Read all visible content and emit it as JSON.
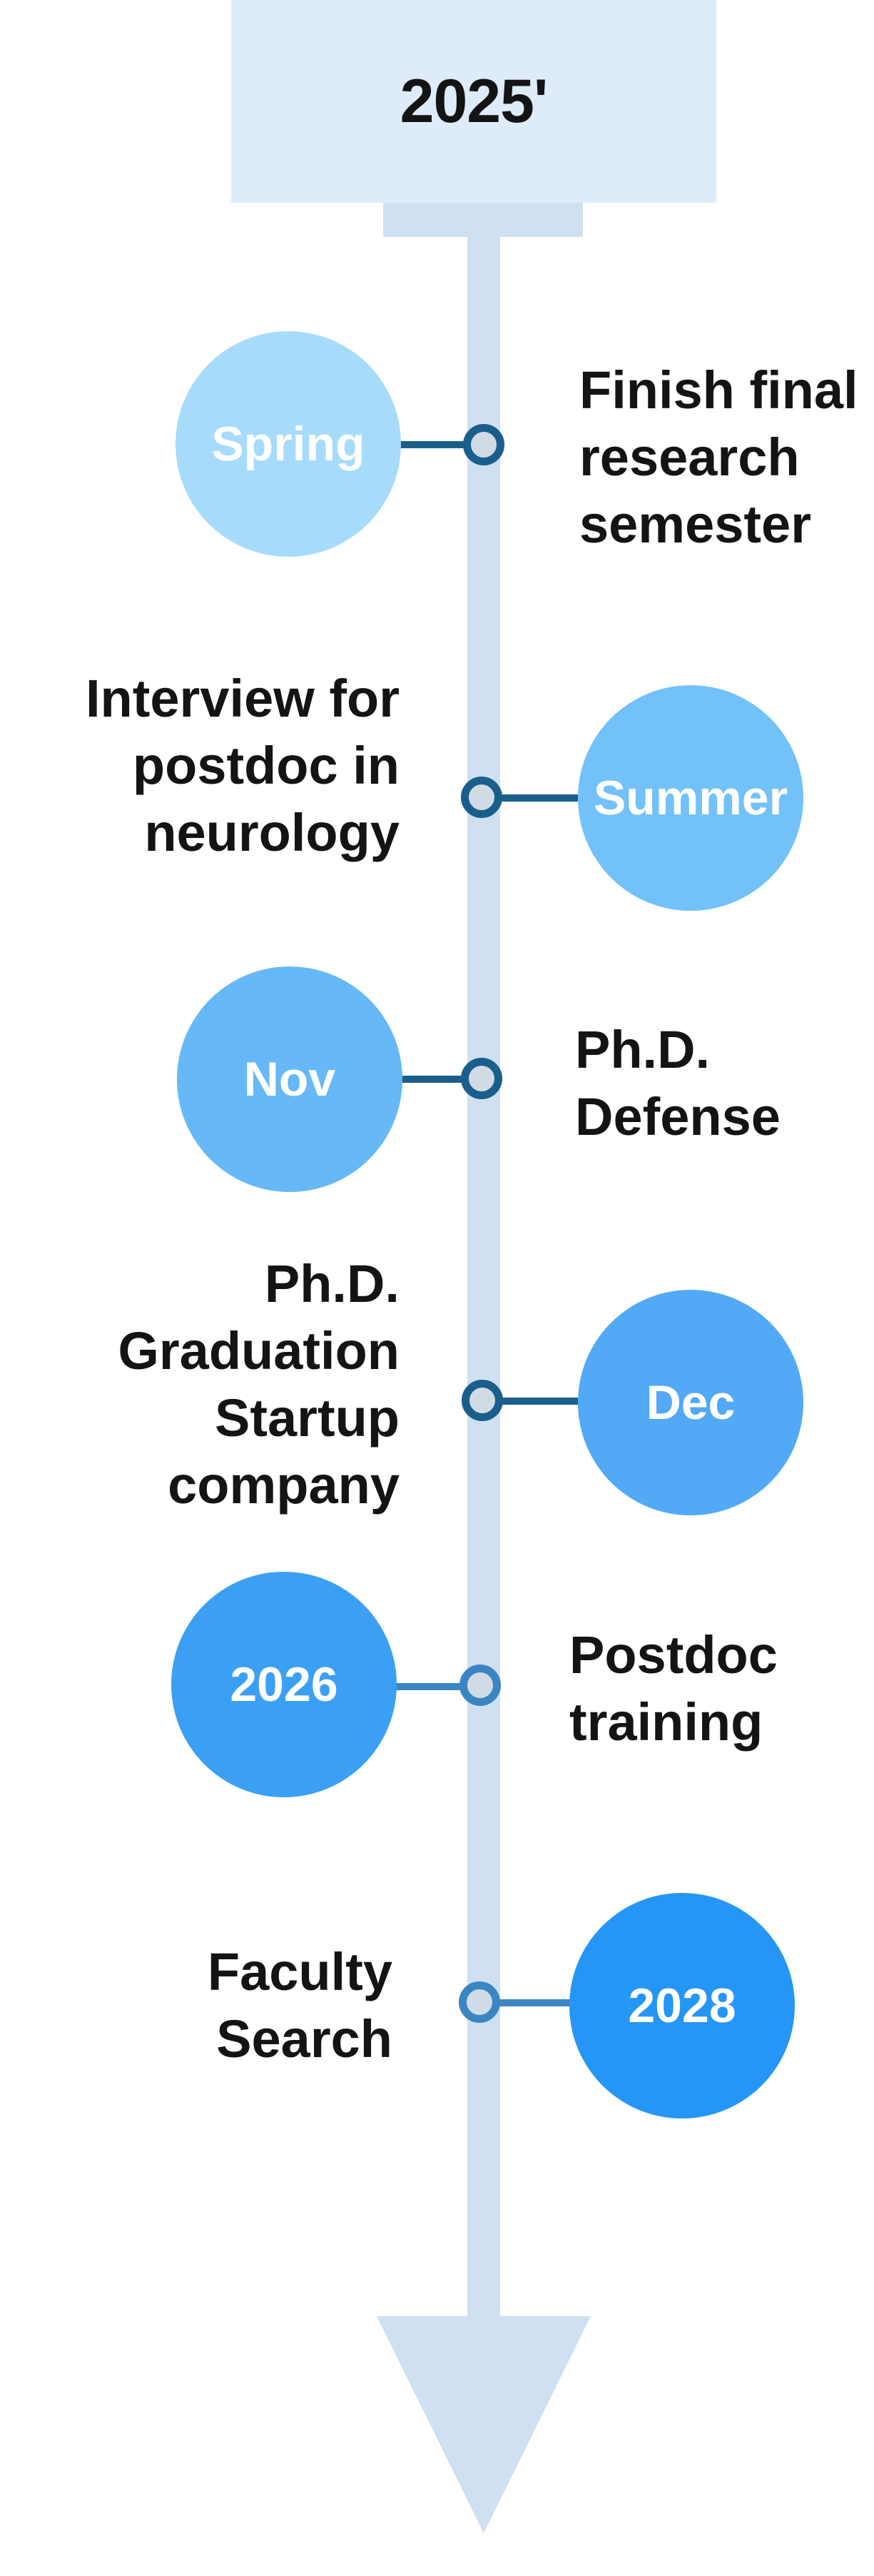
{
  "header": {
    "title": "2025'"
  },
  "colors": {
    "header_bg": "#deebf8",
    "spine": "#cfe0f0",
    "node_fill": "#d0dbe6"
  },
  "events": [
    {
      "label": "Spring",
      "text": [
        "Finish final",
        "research",
        "semester"
      ],
      "circle_color": "#a6dbfb",
      "accent_color": "#1a5e8c"
    },
    {
      "label": "Summer",
      "text": [
        "Interview for",
        "postdoc in",
        "neurology"
      ],
      "circle_color": "#72c1f9",
      "accent_color": "#1a5e8c"
    },
    {
      "label": "Nov",
      "text": [
        "Ph.D.",
        "Defense"
      ],
      "circle_color": "#66b9f6",
      "accent_color": "#1a5e8c"
    },
    {
      "label": "Dec",
      "text": [
        "Ph.D.",
        "Graduation",
        "Startup",
        "company"
      ],
      "circle_color": "#52a9f5",
      "accent_color": "#1a5e8c"
    },
    {
      "label": "2026",
      "text": [
        "Postdoc",
        "training"
      ],
      "circle_color": "#3ba0f4",
      "accent_color": "#3b86c2"
    },
    {
      "label": "2028",
      "text": [
        "Faculty",
        "Search"
      ],
      "circle_color": "#2596f5",
      "accent_color": "#3b86c2"
    }
  ]
}
